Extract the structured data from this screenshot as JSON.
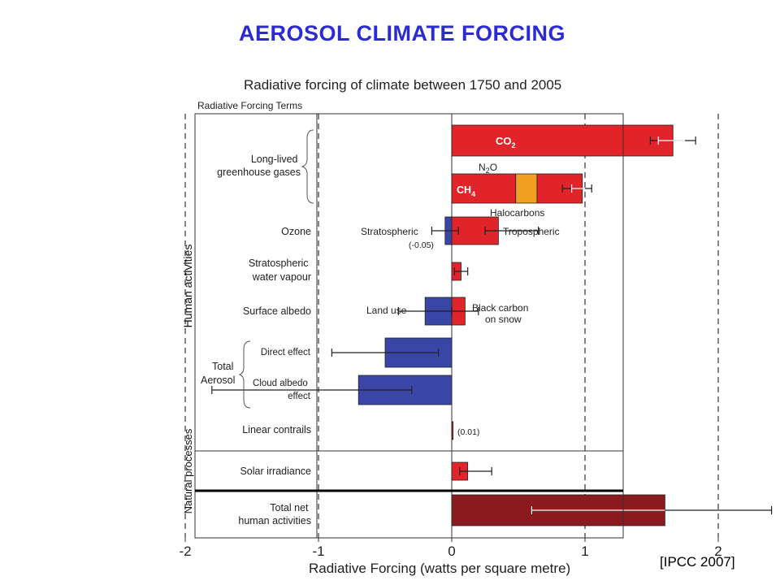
{
  "slide": {
    "title": "AEROSOL CLIMATE FORCING",
    "citation": "[IPCC 2007]"
  },
  "colors": {
    "title": "#2b2bd2",
    "positive": "#e0242a",
    "negative": "#3a46a6",
    "total": "#8b1a1f",
    "orange": "#f0a020"
  },
  "chart_data": {
    "type": "bar",
    "orientation": "horizontal",
    "title": "Radiative forcing of climate between 1750 and 2005",
    "column_header": "Radiative Forcing Terms",
    "xlabel": "Radiative Forcing  (watts per square metre)",
    "xlim": [
      -2.5,
      2.5
    ],
    "xticks": [
      -2,
      -1,
      0,
      1,
      2
    ],
    "xtick_labels": [
      "-2",
      "-1",
      "0",
      "1",
      "2"
    ],
    "dashed_gridlines": [
      -2,
      -1,
      1,
      2
    ],
    "group_labels": [
      "Human activities",
      "Natural processes"
    ],
    "bracket_labels": [
      "Long-lived greenhouse gases",
      "Total Aerosol"
    ],
    "rows": [
      {
        "label": "Long-lived greenhouse gases",
        "segments": [
          {
            "start": 0,
            "end": 1.66,
            "color": "positive",
            "text": "CO2"
          }
        ],
        "errors": [
          [
            1.49,
            1.83
          ]
        ]
      },
      {
        "label": "",
        "segments": [
          {
            "start": 0,
            "end": 0.48,
            "color": "positive",
            "text": "CH4"
          },
          {
            "start": 0.48,
            "end": 0.64,
            "color": "orange",
            "text": ""
          },
          {
            "start": 0.64,
            "end": 0.98,
            "color": "positive",
            "text": ""
          }
        ],
        "errors": [
          [
            0.83,
            1.05
          ]
        ]
      },
      {
        "label": "Ozone",
        "segments": [
          {
            "start": -0.05,
            "end": 0,
            "color": "negative",
            "text": ""
          },
          {
            "start": 0,
            "end": 0.35,
            "color": "positive",
            "text": ""
          }
        ],
        "errors": [
          [
            -0.15,
            0.05
          ],
          [
            0.25,
            0.65
          ]
        ]
      },
      {
        "label": "Stratospheric water vapour",
        "segments": [
          {
            "start": 0,
            "end": 0.07,
            "color": "positive",
            "text": ""
          }
        ],
        "errors": [
          [
            0.02,
            0.12
          ]
        ]
      },
      {
        "label": "Surface albedo",
        "segments": [
          {
            "start": -0.2,
            "end": 0,
            "color": "negative",
            "text": ""
          },
          {
            "start": 0,
            "end": 0.1,
            "color": "positive",
            "text": ""
          }
        ],
        "errors": [
          [
            -0.4,
            0.0
          ],
          [
            0.0,
            0.2
          ]
        ]
      },
      {
        "label": "Direct effect",
        "segments": [
          {
            "start": -0.5,
            "end": 0,
            "color": "negative",
            "text": ""
          }
        ],
        "errors": [
          [
            -0.9,
            -0.1
          ]
        ]
      },
      {
        "label": "Cloud albedo effect",
        "segments": [
          {
            "start": -0.7,
            "end": 0,
            "color": "negative",
            "text": ""
          }
        ],
        "errors": [
          [
            -1.8,
            -0.3
          ]
        ]
      },
      {
        "label": "Linear contrails",
        "segments": [
          {
            "start": 0,
            "end": 0.01,
            "color": "positive",
            "text": ""
          }
        ],
        "errors": []
      },
      {
        "label": "Solar irradiance",
        "segments": [
          {
            "start": 0,
            "end": 0.12,
            "color": "positive",
            "text": ""
          }
        ],
        "errors": [
          [
            0.06,
            0.3
          ]
        ]
      },
      {
        "label": "Total net human activities",
        "segments": [
          {
            "start": 0,
            "end": 1.6,
            "color": "total",
            "text": ""
          }
        ],
        "errors": [
          [
            0.6,
            2.4
          ]
        ]
      }
    ],
    "annotations": [
      "N2O",
      "Halocarbons",
      "Stratospheric",
      "(-0.05)",
      "Tropospheric",
      "Land use",
      "Black carbon on snow",
      "(0.01)"
    ]
  }
}
